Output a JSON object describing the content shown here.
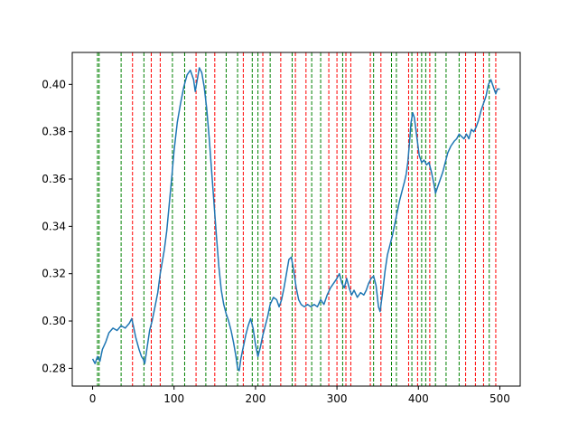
{
  "chart_data": {
    "type": "line",
    "title": "",
    "xlabel": "",
    "ylabel": "",
    "xlim": [
      -25,
      525
    ],
    "ylim": [
      0.2725,
      0.4135
    ],
    "x_ticks": [
      0,
      100,
      200,
      300,
      400,
      500
    ],
    "y_ticks": [
      0.28,
      0.3,
      0.32,
      0.34,
      0.36,
      0.38,
      0.4
    ],
    "series": [
      {
        "color": "#1f77b4",
        "points": [
          [
            0,
            0.284
          ],
          [
            3,
            0.282
          ],
          [
            6,
            0.285
          ],
          [
            9,
            0.283
          ],
          [
            12,
            0.288
          ],
          [
            16,
            0.291
          ],
          [
            20,
            0.295
          ],
          [
            25,
            0.297
          ],
          [
            30,
            0.296
          ],
          [
            35,
            0.298
          ],
          [
            40,
            0.297
          ],
          [
            45,
            0.299
          ],
          [
            48,
            0.301
          ],
          [
            50,
            0.298
          ],
          [
            53,
            0.293
          ],
          [
            57,
            0.288
          ],
          [
            60,
            0.285
          ],
          [
            62,
            0.284
          ],
          [
            64,
            0.282
          ],
          [
            67,
            0.289
          ],
          [
            70,
            0.296
          ],
          [
            73,
            0.3
          ],
          [
            76,
            0.305
          ],
          [
            80,
            0.312
          ],
          [
            83,
            0.32
          ],
          [
            86,
            0.326
          ],
          [
            88,
            0.33
          ],
          [
            91,
            0.338
          ],
          [
            94,
            0.349
          ],
          [
            97,
            0.36
          ],
          [
            100,
            0.372
          ],
          [
            104,
            0.384
          ],
          [
            108,
            0.392
          ],
          [
            112,
            0.399
          ],
          [
            116,
            0.404
          ],
          [
            120,
            0.406
          ],
          [
            124,
            0.402
          ],
          [
            126,
            0.397
          ],
          [
            128,
            0.401
          ],
          [
            131,
            0.407
          ],
          [
            134,
            0.405
          ],
          [
            137,
            0.399
          ],
          [
            140,
            0.39
          ],
          [
            143,
            0.378
          ],
          [
            146,
            0.364
          ],
          [
            149,
            0.35
          ],
          [
            152,
            0.336
          ],
          [
            155,
            0.323
          ],
          [
            158,
            0.313
          ],
          [
            161,
            0.307
          ],
          [
            164,
            0.303
          ],
          [
            167,
            0.3
          ],
          [
            170,
            0.296
          ],
          [
            173,
            0.291
          ],
          [
            176,
            0.285
          ],
          [
            178,
            0.28
          ],
          [
            180,
            0.279
          ],
          [
            182,
            0.284
          ],
          [
            185,
            0.289
          ],
          [
            188,
            0.294
          ],
          [
            191,
            0.298
          ],
          [
            194,
            0.301
          ],
          [
            197,
            0.297
          ],
          [
            200,
            0.29
          ],
          [
            203,
            0.285
          ],
          [
            206,
            0.289
          ],
          [
            209,
            0.294
          ],
          [
            212,
            0.298
          ],
          [
            215,
            0.302
          ],
          [
            218,
            0.307
          ],
          [
            222,
            0.31
          ],
          [
            226,
            0.309
          ],
          [
            229,
            0.306
          ],
          [
            232,
            0.309
          ],
          [
            235,
            0.314
          ],
          [
            238,
            0.32
          ],
          [
            241,
            0.326
          ],
          [
            244,
            0.327
          ],
          [
            247,
            0.321
          ],
          [
            250,
            0.314
          ],
          [
            253,
            0.309
          ],
          [
            256,
            0.307
          ],
          [
            260,
            0.306
          ],
          [
            264,
            0.307
          ],
          [
            268,
            0.306
          ],
          [
            272,
            0.307
          ],
          [
            276,
            0.306
          ],
          [
            280,
            0.309
          ],
          [
            284,
            0.307
          ],
          [
            288,
            0.311
          ],
          [
            292,
            0.314
          ],
          [
            296,
            0.316
          ],
          [
            300,
            0.318
          ],
          [
            303,
            0.32
          ],
          [
            306,
            0.316
          ],
          [
            309,
            0.314
          ],
          [
            312,
            0.318
          ],
          [
            315,
            0.314
          ],
          [
            318,
            0.311
          ],
          [
            321,
            0.313
          ],
          [
            325,
            0.31
          ],
          [
            329,
            0.312
          ],
          [
            333,
            0.311
          ],
          [
            336,
            0.313
          ],
          [
            339,
            0.316
          ],
          [
            342,
            0.318
          ],
          [
            345,
            0.319
          ],
          [
            348,
            0.315
          ],
          [
            351,
            0.306
          ],
          [
            353,
            0.304
          ],
          [
            356,
            0.312
          ],
          [
            359,
            0.321
          ],
          [
            362,
            0.328
          ],
          [
            365,
            0.332
          ],
          [
            368,
            0.336
          ],
          [
            371,
            0.341
          ],
          [
            374,
            0.346
          ],
          [
            377,
            0.351
          ],
          [
            380,
            0.355
          ],
          [
            383,
            0.359
          ],
          [
            385,
            0.362
          ],
          [
            387,
            0.367
          ],
          [
            389,
            0.375
          ],
          [
            391,
            0.384
          ],
          [
            393,
            0.388
          ],
          [
            395,
            0.386
          ],
          [
            398,
            0.378
          ],
          [
            401,
            0.37
          ],
          [
            404,
            0.367
          ],
          [
            407,
            0.368
          ],
          [
            410,
            0.366
          ],
          [
            413,
            0.367
          ],
          [
            416,
            0.363
          ],
          [
            419,
            0.358
          ],
          [
            421,
            0.354
          ],
          [
            424,
            0.357
          ],
          [
            427,
            0.36
          ],
          [
            430,
            0.363
          ],
          [
            433,
            0.367
          ],
          [
            436,
            0.371
          ],
          [
            440,
            0.374
          ],
          [
            444,
            0.376
          ],
          [
            447,
            0.377
          ],
          [
            450,
            0.379
          ],
          [
            453,
            0.378
          ],
          [
            456,
            0.377
          ],
          [
            459,
            0.379
          ],
          [
            462,
            0.377
          ],
          [
            465,
            0.381
          ],
          [
            468,
            0.38
          ],
          [
            471,
            0.382
          ],
          [
            474,
            0.385
          ],
          [
            477,
            0.389
          ],
          [
            480,
            0.392
          ],
          [
            483,
            0.395
          ],
          [
            486,
            0.4
          ],
          [
            489,
            0.402
          ],
          [
            492,
            0.399
          ],
          [
            495,
            0.396
          ],
          [
            497,
            0.398
          ],
          [
            500,
            0.398
          ]
        ]
      }
    ],
    "vlines_red": [
      49,
      72,
      83,
      127,
      150,
      185,
      209,
      231,
      249,
      262,
      290,
      300,
      311,
      317,
      341,
      354,
      388,
      399,
      414,
      458,
      470,
      480,
      495
    ],
    "vlines_green": [
      6,
      8,
      35,
      63,
      98,
      113,
      139,
      164,
      178,
      196,
      203,
      218,
      245,
      269,
      280,
      307,
      345,
      367,
      373,
      392,
      404,
      409,
      421,
      434,
      450,
      487
    ]
  }
}
